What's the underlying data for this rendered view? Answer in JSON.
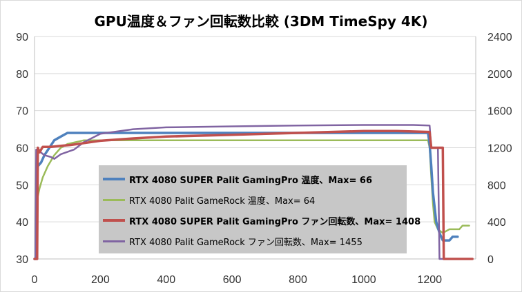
{
  "chart_data": {
    "type": "line",
    "title": "GPU温度＆ファン回転数比較 (3DM TimeSpy 4K)",
    "xlim": [
      0,
      1340
    ],
    "x_ticks": [
      "0",
      "200",
      "400",
      "600",
      "800",
      "1000",
      "1200"
    ],
    "y_left": {
      "range": [
        30,
        90
      ],
      "ticks": [
        "30",
        "40",
        "50",
        "60",
        "70",
        "80",
        "90"
      ]
    },
    "y_right": {
      "range": [
        0,
        2400
      ],
      "ticks": [
        "0",
        "400",
        "800",
        "1200",
        "1600",
        "2000",
        "2400"
      ]
    },
    "grid": "horizontal",
    "legend_position": "center-bottom",
    "series": [
      {
        "name": "RTX 4080 SUPER Palit GamingPro 温度、Max= 66",
        "axis": "left",
        "color": "#4f81bd",
        "bold": true,
        "points": [
          [
            0,
            30
          ],
          [
            5,
            30
          ],
          [
            7,
            51
          ],
          [
            10,
            55
          ],
          [
            20,
            56
          ],
          [
            30,
            58
          ],
          [
            45,
            60
          ],
          [
            60,
            62
          ],
          [
            80,
            63
          ],
          [
            100,
            64
          ],
          [
            120,
            64
          ],
          [
            200,
            64
          ],
          [
            400,
            64
          ],
          [
            600,
            64
          ],
          [
            800,
            64
          ],
          [
            1000,
            64
          ],
          [
            1150,
            64
          ],
          [
            1195,
            64
          ],
          [
            1200,
            61
          ],
          [
            1205,
            55
          ],
          [
            1210,
            48
          ],
          [
            1215,
            44
          ],
          [
            1220,
            40
          ],
          [
            1230,
            37
          ],
          [
            1240,
            35
          ],
          [
            1260,
            35
          ],
          [
            1270,
            36
          ],
          [
            1285,
            36
          ]
        ]
      },
      {
        "name": "RTX 4080 Palit GameRock 温度、Max= 64",
        "axis": "left",
        "color": "#9bbb59",
        "bold": false,
        "points": [
          [
            0,
            30
          ],
          [
            5,
            30
          ],
          [
            8,
            46
          ],
          [
            15,
            49
          ],
          [
            25,
            52
          ],
          [
            40,
            55
          ],
          [
            60,
            58
          ],
          [
            80,
            60
          ],
          [
            100,
            61
          ],
          [
            150,
            62
          ],
          [
            200,
            62
          ],
          [
            400,
            62
          ],
          [
            600,
            62
          ],
          [
            800,
            62
          ],
          [
            1000,
            62
          ],
          [
            1150,
            62
          ],
          [
            1195,
            62
          ],
          [
            1200,
            60
          ],
          [
            1205,
            52
          ],
          [
            1210,
            45
          ],
          [
            1215,
            40
          ],
          [
            1225,
            38
          ],
          [
            1240,
            37
          ],
          [
            1260,
            38
          ],
          [
            1290,
            38
          ],
          [
            1300,
            39
          ],
          [
            1320,
            39
          ]
        ]
      },
      {
        "name": "RTX 4080 SUPER Palit GamingPro ファン回転数、Max= 1408",
        "axis": "right",
        "color": "#c0504d",
        "bold": true,
        "points": [
          [
            0,
            0
          ],
          [
            8,
            0
          ],
          [
            10,
            1200
          ],
          [
            15,
            1150
          ],
          [
            25,
            1210
          ],
          [
            50,
            1210
          ],
          [
            80,
            1220
          ],
          [
            110,
            1230
          ],
          [
            150,
            1250
          ],
          [
            200,
            1275
          ],
          [
            300,
            1300
          ],
          [
            400,
            1320
          ],
          [
            600,
            1340
          ],
          [
            800,
            1360
          ],
          [
            1000,
            1380
          ],
          [
            1100,
            1380
          ],
          [
            1200,
            1370
          ],
          [
            1205,
            1200
          ],
          [
            1240,
            1200
          ],
          [
            1243,
            0
          ],
          [
            1330,
            0
          ]
        ]
      },
      {
        "name": "RTX 4080 Palit GameRock ファン回転数、Max= 1455",
        "axis": "right",
        "color": "#8064a2",
        "bold": false,
        "points": [
          [
            0,
            0
          ],
          [
            3,
            0
          ],
          [
            5,
            1180
          ],
          [
            15,
            1160
          ],
          [
            30,
            1120
          ],
          [
            50,
            1100
          ],
          [
            60,
            1080
          ],
          [
            80,
            1130
          ],
          [
            120,
            1180
          ],
          [
            150,
            1260
          ],
          [
            200,
            1350
          ],
          [
            300,
            1400
          ],
          [
            400,
            1420
          ],
          [
            600,
            1430
          ],
          [
            800,
            1440
          ],
          [
            1000,
            1445
          ],
          [
            1150,
            1445
          ],
          [
            1200,
            1440
          ],
          [
            1205,
            1200
          ],
          [
            1225,
            1200
          ],
          [
            1230,
            0
          ],
          [
            1330,
            0
          ]
        ]
      }
    ]
  }
}
